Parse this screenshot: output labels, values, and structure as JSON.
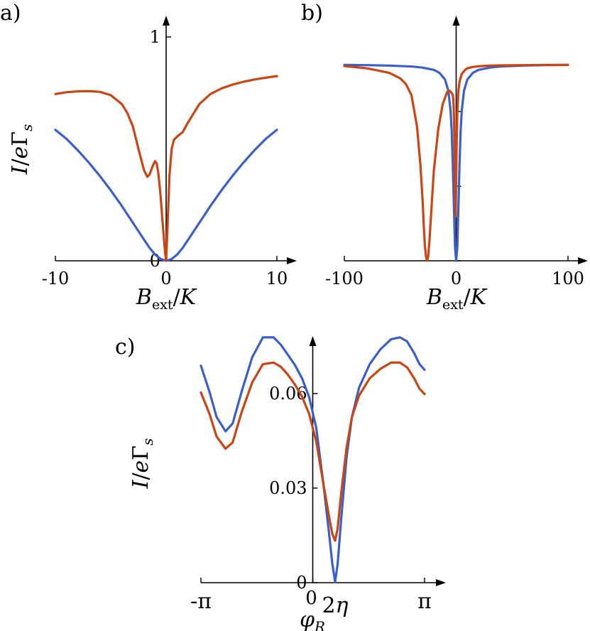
{
  "colors": {
    "blue": "#3a5fcd",
    "orange": "#cc4411"
  },
  "chart_data": [
    {
      "type": "line",
      "panel_label": "a)",
      "xlabel": "B_ext/K",
      "ylabel": "I/eΓ_s",
      "xlim": [
        -10,
        10
      ],
      "ylim": [
        0,
        1
      ],
      "xticks": [
        -10,
        0,
        10
      ],
      "xtick_labels": [
        "-10",
        "0",
        "10"
      ],
      "yticks": [
        0,
        1
      ],
      "ytick_labels": [
        "0",
        "1"
      ],
      "grid": false,
      "series": [
        {
          "color": "blue",
          "x": [
            -10,
            -9,
            -8,
            -7,
            -6,
            -5,
            -4,
            -3,
            -2,
            -1.5,
            -1,
            -0.5,
            0,
            0.5,
            1,
            1.5,
            2,
            3,
            4,
            5,
            6,
            7,
            8,
            9,
            10
          ],
          "y": [
            0.585,
            0.545,
            0.495,
            0.44,
            0.38,
            0.315,
            0.245,
            0.17,
            0.095,
            0.058,
            0.028,
            0.008,
            0.0,
            0.008,
            0.028,
            0.058,
            0.095,
            0.17,
            0.245,
            0.315,
            0.38,
            0.44,
            0.495,
            0.545,
            0.585
          ]
        },
        {
          "color": "orange",
          "x": [
            -10,
            -9,
            -8,
            -7,
            -6,
            -5,
            -4,
            -3.5,
            -3,
            -2.5,
            -2,
            -1.7,
            -1.5,
            -1.2,
            -1.0,
            -0.85,
            -0.7,
            -0.5,
            -0.3,
            -0.1,
            0,
            0.1,
            0.3,
            0.5,
            0.7,
            1.0,
            1.5,
            2,
            3,
            4,
            5,
            6,
            7,
            8,
            9,
            10
          ],
          "y": [
            0.745,
            0.753,
            0.757,
            0.758,
            0.755,
            0.74,
            0.7,
            0.66,
            0.6,
            0.5,
            0.405,
            0.375,
            0.385,
            0.425,
            0.445,
            0.435,
            0.39,
            0.29,
            0.16,
            0.04,
            0.0,
            0.12,
            0.38,
            0.5,
            0.54,
            0.555,
            0.575,
            0.62,
            0.7,
            0.745,
            0.77,
            0.787,
            0.8,
            0.81,
            0.818,
            0.825
          ]
        }
      ]
    },
    {
      "type": "line",
      "panel_label": "b)",
      "xlabel": "B_ext/K",
      "ylabel": "",
      "xlim": [
        -100,
        100
      ],
      "ylim": [
        0,
        1
      ],
      "xticks": [
        -100,
        0,
        100
      ],
      "xtick_labels": [
        "-100",
        "0",
        "100"
      ],
      "yticks": [
        0,
        0.333,
        0.667
      ],
      "ytick_labels": [],
      "grid": false,
      "series": [
        {
          "color": "blue",
          "x": [
            -100,
            -80,
            -60,
            -40,
            -30,
            -20,
            -15,
            -10,
            -7,
            -5,
            -4,
            -3,
            -2,
            -1,
            0,
            1,
            2,
            3,
            4,
            5,
            7,
            10,
            15,
            20,
            30,
            40,
            60,
            80,
            100
          ],
          "y": [
            0.875,
            0.874,
            0.872,
            0.868,
            0.863,
            0.853,
            0.84,
            0.81,
            0.76,
            0.67,
            0.58,
            0.43,
            0.24,
            0.06,
            0.0,
            0.06,
            0.24,
            0.43,
            0.58,
            0.67,
            0.76,
            0.81,
            0.84,
            0.853,
            0.863,
            0.868,
            0.872,
            0.874,
            0.875
          ]
        },
        {
          "color": "orange",
          "x": [
            -100,
            -80,
            -60,
            -50,
            -45,
            -40,
            -35,
            -32,
            -30,
            -29,
            -28,
            -27,
            -26,
            -25,
            -24,
            -22,
            -20,
            -16,
            -12,
            -8,
            -6,
            -4,
            -3,
            -2.5,
            -2,
            -1.5,
            -1,
            -0.5,
            0,
            0.5,
            1,
            2,
            3,
            5,
            8,
            10,
            15,
            20,
            30,
            40,
            60,
            80,
            100
          ],
          "y": [
            0.87,
            0.86,
            0.84,
            0.815,
            0.79,
            0.74,
            0.6,
            0.43,
            0.27,
            0.16,
            0.07,
            0.02,
            0.0,
            0.02,
            0.08,
            0.24,
            0.4,
            0.59,
            0.7,
            0.755,
            0.76,
            0.75,
            0.74,
            0.72,
            0.65,
            0.53,
            0.36,
            0.2,
            0.35,
            0.55,
            0.66,
            0.76,
            0.8,
            0.835,
            0.853,
            0.86,
            0.866,
            0.869,
            0.872,
            0.873,
            0.874,
            0.875,
            0.875
          ]
        }
      ]
    },
    {
      "type": "line",
      "panel_label": "c)",
      "xlabel": "φ_R",
      "ylabel": "I/eΓ_s",
      "xlim": [
        -3.1416,
        3.1416
      ],
      "ylim": [
        0,
        0.08
      ],
      "xticks": [
        -3.1416,
        0,
        0.6283,
        3.1416
      ],
      "xtick_labels": [
        "-π",
        "0",
        "2η",
        "π"
      ],
      "yticks": [
        0,
        0.03,
        0.06
      ],
      "ytick_labels": [
        "0",
        "0.03",
        "0.06"
      ],
      "grid": false,
      "series": [
        {
          "color": "blue",
          "x": [
            -3.1416,
            -2.9,
            -2.7,
            -2.45,
            -2.25,
            -2.0,
            -1.7,
            -1.4,
            -1.1,
            -0.9,
            -0.7,
            -0.5,
            -0.3,
            -0.1,
            0.1,
            0.3,
            0.45,
            0.55,
            0.6283,
            0.7,
            0.8,
            0.95,
            1.1,
            1.3,
            1.6,
            1.9,
            2.2,
            2.45,
            2.65,
            2.85,
            3.0,
            3.1416
          ],
          "y": [
            0.0688,
            0.0605,
            0.0525,
            0.048,
            0.0505,
            0.0605,
            0.0715,
            0.0778,
            0.0778,
            0.0755,
            0.0723,
            0.069,
            0.0648,
            0.0588,
            0.049,
            0.0312,
            0.0165,
            0.006,
            0.0002,
            0.006,
            0.0203,
            0.0397,
            0.0525,
            0.0618,
            0.0693,
            0.074,
            0.0772,
            0.0778,
            0.0765,
            0.0728,
            0.0693,
            0.0675
          ]
        },
        {
          "color": "orange",
          "x": [
            -3.1416,
            -2.9,
            -2.7,
            -2.45,
            -2.25,
            -2.0,
            -1.7,
            -1.4,
            -1.1,
            -0.9,
            -0.7,
            -0.5,
            -0.3,
            -0.1,
            0.1,
            0.3,
            0.45,
            0.55,
            0.6283,
            0.7,
            0.8,
            0.95,
            1.1,
            1.3,
            1.6,
            1.9,
            2.2,
            2.45,
            2.65,
            2.85,
            3.0,
            3.1416
          ],
          "y": [
            0.0603,
            0.0535,
            0.0463,
            0.0425,
            0.0445,
            0.054,
            0.0635,
            0.0693,
            0.0698,
            0.0685,
            0.066,
            0.0628,
            0.059,
            0.0535,
            0.0447,
            0.0313,
            0.0215,
            0.0155,
            0.0133,
            0.0172,
            0.0285,
            0.0428,
            0.0525,
            0.0593,
            0.0648,
            0.0678,
            0.0698,
            0.0698,
            0.0683,
            0.0648,
            0.0615,
            0.0598
          ]
        }
      ]
    }
  ]
}
